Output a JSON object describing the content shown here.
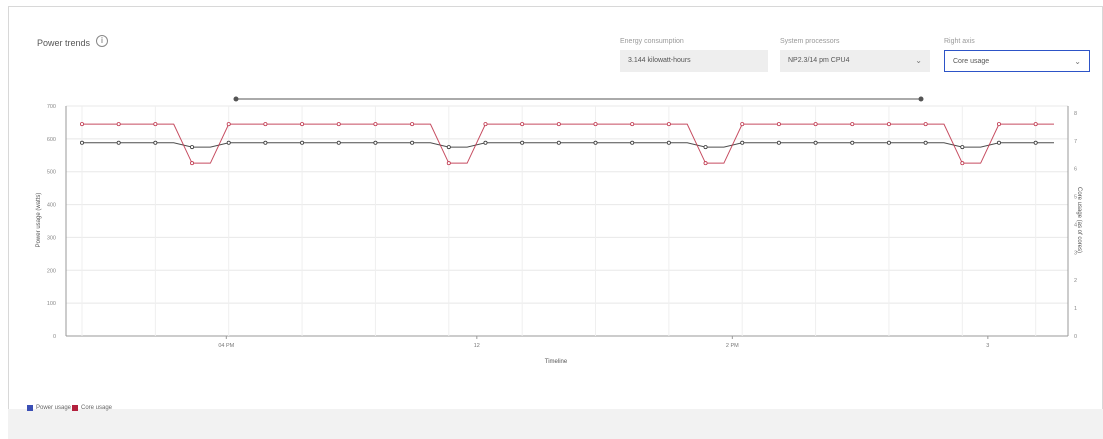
{
  "page": {
    "title": "Power trends"
  },
  "controls": {
    "energy": {
      "label": "Energy consumption",
      "value": "3.144 kilowatt-hours"
    },
    "system": {
      "label": "System processors",
      "value": "NP2.3/14 pm CPU4"
    },
    "right_axis": {
      "label": "Right axis",
      "value": "Core usage"
    }
  },
  "colors": {
    "power": "#3a3a3a",
    "core": "#c0394f",
    "accent": "#2d54c7",
    "power_legend": "#3b4fb5",
    "core_legend": "#b3203d"
  },
  "chart_data": {
    "type": "line",
    "xlabel": "Timeline",
    "ylabel_left": "Power usage (watts)",
    "ylabel_right": "Core usage (as of cores)",
    "y_left_ticks": [
      "700",
      "600",
      "500",
      "400",
      "300",
      "200",
      "100",
      "0"
    ],
    "y_right_ticks": [
      "8",
      "7",
      "6",
      "5",
      "4",
      "3",
      "2",
      "1",
      "0"
    ],
    "y_left_range": [
      0,
      700
    ],
    "y_right_range": [
      0,
      8.25
    ],
    "x_ticks": [
      "04 PM",
      "12",
      "2 PM",
      "3"
    ],
    "grid": true,
    "legend_position": "bottom-left",
    "series": [
      {
        "name": "Power usage",
        "axis": "left",
        "values": [
          588,
          588,
          588,
          588,
          588,
          588,
          575,
          575,
          588,
          588,
          588,
          588,
          588,
          588,
          588,
          588,
          588,
          588,
          588,
          588,
          575,
          575,
          588,
          588,
          588,
          588,
          588,
          588,
          588,
          588,
          588,
          588,
          588,
          588,
          575,
          575,
          588,
          588,
          588,
          588,
          588,
          588,
          588,
          588,
          588,
          588,
          588,
          588,
          575,
          575,
          588,
          588,
          588,
          588
        ]
      },
      {
        "name": "Core usage",
        "axis": "right",
        "values": [
          7.6,
          7.6,
          7.6,
          7.6,
          7.6,
          7.6,
          6.2,
          6.2,
          7.6,
          7.6,
          7.6,
          7.6,
          7.6,
          7.6,
          7.6,
          7.6,
          7.6,
          7.6,
          7.6,
          7.6,
          6.2,
          6.2,
          7.6,
          7.6,
          7.6,
          7.6,
          7.6,
          7.6,
          7.6,
          7.6,
          7.6,
          7.6,
          7.6,
          7.6,
          6.2,
          6.2,
          7.6,
          7.6,
          7.6,
          7.6,
          7.6,
          7.6,
          7.6,
          7.6,
          7.6,
          7.6,
          7.6,
          7.6,
          6.2,
          6.2,
          7.6,
          7.6,
          7.6,
          7.6
        ]
      }
    ]
  }
}
